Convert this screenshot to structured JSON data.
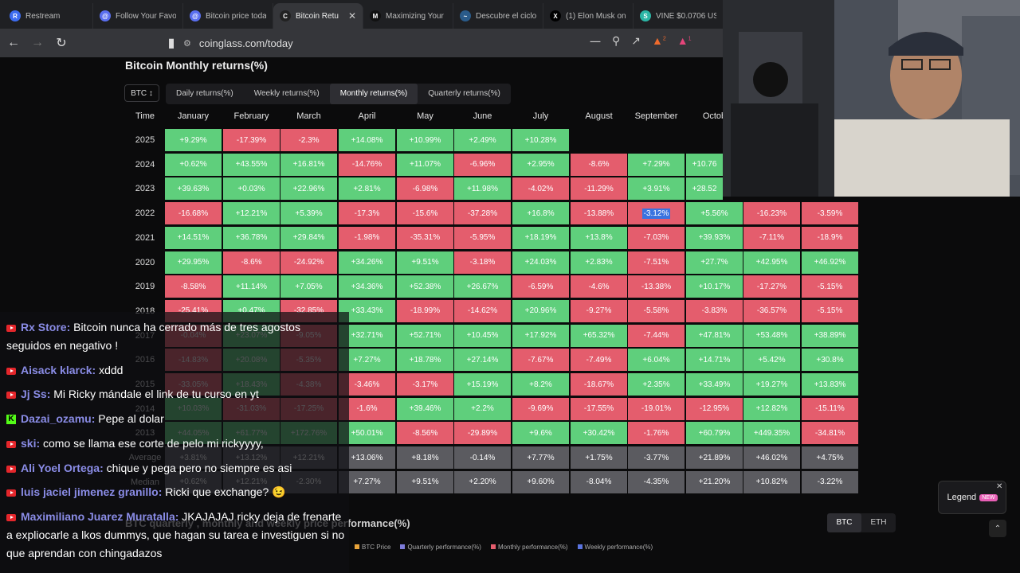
{
  "tabs": [
    {
      "title": "Restream",
      "icon": "restream-icon",
      "color": "#3d6cf0",
      "glyph": "R"
    },
    {
      "title": "Follow Your Favou",
      "icon": "browser-app-icon",
      "color": "#5a6ff0",
      "glyph": "@"
    },
    {
      "title": "Bitcoin price toda",
      "icon": "browser-app-icon",
      "color": "#5a6ff0",
      "glyph": "@"
    },
    {
      "title": "Bitcoin Retu",
      "icon": "coinglass-icon",
      "color": "#222222",
      "glyph": "C",
      "active": true
    },
    {
      "title": "Maximizing Your C",
      "icon": "medium-icon",
      "color": "#111111",
      "glyph": "M"
    },
    {
      "title": "Descubre el ciclo c",
      "icon": "chart-icon",
      "color": "#2a5b8a",
      "glyph": "~"
    },
    {
      "title": "(1) Elon Musk on X",
      "icon": "x-icon",
      "color": "#000000",
      "glyph": "X"
    },
    {
      "title": "VINE $0.0706 USD",
      "icon": "token-icon",
      "color": "#2cb6a6",
      "glyph": "S"
    }
  ],
  "toolbar": {
    "url": "coinglass.com/today",
    "badge_brave": "2",
    "badge_alert": "1"
  },
  "page": {
    "title": "Bitcoin Monthly returns(%)",
    "coin_select": "BTC",
    "period_tabs": [
      "Daily returns(%)",
      "Weekly returns(%)",
      "Monthly returns(%)",
      "Quarterly returns(%)"
    ],
    "active_period": 2,
    "subtitle": "BTC quarterly , monthly and weekly price performance(%)",
    "legend_items": [
      "BTC Price",
      "Quarterly performance(%)",
      "Monthly performance(%)",
      "Weekly performance(%)"
    ],
    "legend_colors": [
      "#e8a43a",
      "#7d7bd9",
      "#e45d6d",
      "#5b74e0"
    ],
    "currency_tabs": [
      "BTC",
      "ETH"
    ],
    "legend_button": "Legend",
    "legend_badge": "NEW"
  },
  "table": {
    "time_header": "Time",
    "months": [
      "January",
      "February",
      "March",
      "April",
      "May",
      "June",
      "July",
      "August",
      "September",
      "Octob"
    ],
    "rows": [
      {
        "year": "2025",
        "values": [
          "+9.29%",
          "-17.39%",
          "-2.3%",
          "+14.08%",
          "+10.99%",
          "+2.49%",
          "+10.28%",
          "",
          "",
          "",
          "",
          ""
        ]
      },
      {
        "year": "2024",
        "values": [
          "+0.62%",
          "+43.55%",
          "+16.81%",
          "-14.76%",
          "+11.07%",
          "-6.96%",
          "+2.95%",
          "-8.6%",
          "+7.29%",
          "+10.76",
          "",
          ""
        ]
      },
      {
        "year": "2023",
        "values": [
          "+39.63%",
          "+0.03%",
          "+22.96%",
          "+2.81%",
          "-6.98%",
          "+11.98%",
          "-4.02%",
          "-11.29%",
          "+3.91%",
          "+28.52",
          "",
          ""
        ]
      },
      {
        "year": "2022",
        "values": [
          "-16.68%",
          "+12.21%",
          "+5.39%",
          "-17.3%",
          "-15.6%",
          "-37.28%",
          "+16.8%",
          "-13.88%",
          "-3.12%",
          "+5.56%",
          "-16.23%",
          "-3.59%"
        ]
      },
      {
        "year": "2021",
        "values": [
          "+14.51%",
          "+36.78%",
          "+29.84%",
          "-1.98%",
          "-35.31%",
          "-5.95%",
          "+18.19%",
          "+13.8%",
          "-7.03%",
          "+39.93%",
          "-7.11%",
          "-18.9%"
        ]
      },
      {
        "year": "2020",
        "values": [
          "+29.95%",
          "-8.6%",
          "-24.92%",
          "+34.26%",
          "+9.51%",
          "-3.18%",
          "+24.03%",
          "+2.83%",
          "-7.51%",
          "+27.7%",
          "+42.95%",
          "+46.92%"
        ]
      },
      {
        "year": "2019",
        "values": [
          "-8.58%",
          "+11.14%",
          "+7.05%",
          "+34.36%",
          "+52.38%",
          "+26.67%",
          "-6.59%",
          "-4.6%",
          "-13.38%",
          "+10.17%",
          "-17.27%",
          "-5.15%"
        ]
      },
      {
        "year": "2018",
        "values": [
          "-25.41%",
          "+0.47%",
          "-32.85%",
          "+33.43%",
          "-18.99%",
          "-14.62%",
          "+20.96%",
          "-9.27%",
          "-5.58%",
          "-3.83%",
          "-36.57%",
          "-5.15%"
        ]
      },
      {
        "year": "2017",
        "values": [
          "-0.04%",
          "+23.07%",
          "-9.05%",
          "+32.71%",
          "+52.71%",
          "+10.45%",
          "+17.92%",
          "+65.32%",
          "-7.44%",
          "+47.81%",
          "+53.48%",
          "+38.89%"
        ]
      },
      {
        "year": "2016",
        "values": [
          "-14.83%",
          "+20.08%",
          "-5.35%",
          "+7.27%",
          "+18.78%",
          "+27.14%",
          "-7.67%",
          "-7.49%",
          "+6.04%",
          "+14.71%",
          "+5.42%",
          "+30.8%"
        ]
      },
      {
        "year": "2015",
        "values": [
          "-33.05%",
          "+18.43%",
          "-4.38%",
          "-3.46%",
          "-3.17%",
          "+15.19%",
          "+8.2%",
          "-18.67%",
          "+2.35%",
          "+33.49%",
          "+19.27%",
          "+13.83%"
        ]
      },
      {
        "year": "2014",
        "values": [
          "+10.03%",
          "-31.03%",
          "-17.25%",
          "-1.6%",
          "+39.46%",
          "+2.2%",
          "-9.69%",
          "-17.55%",
          "-19.01%",
          "-12.95%",
          "+12.82%",
          "-15.11%"
        ]
      },
      {
        "year": "2013",
        "values": [
          "+44.05%",
          "+61.77%",
          "+172.76%",
          "+50.01%",
          "-8.56%",
          "-29.89%",
          "+9.6%",
          "+30.42%",
          "-1.76%",
          "+60.79%",
          "+449.35%",
          "-34.81%"
        ]
      },
      {
        "year": "Average",
        "stat": true,
        "values": [
          "+3.81%",
          "+13.12%",
          "+12.21%",
          "+13.06%",
          "+8.18%",
          "-0.14%",
          "+7.77%",
          "+1.75%",
          "-3.77%",
          "+21.89%",
          "+46.02%",
          "+4.75%"
        ]
      },
      {
        "year": "Median",
        "stat": true,
        "values": [
          "+0.62%",
          "+12.21%",
          "-2.30%",
          "+7.27%",
          "+9.51%",
          "+2.20%",
          "+9.60%",
          "-8.04%",
          "-4.35%",
          "+21.20%",
          "+10.82%",
          "-3.22%"
        ]
      }
    ],
    "highlight": {
      "row": 3,
      "col": 8
    }
  },
  "chat": [
    {
      "platform": "youtube",
      "name": "Rx Store:",
      "text": "Bitcoin nunca ha cerrado más de tres agostos seguidos en negativo !"
    },
    {
      "platform": "youtube",
      "name": "Aisack klarck:",
      "text": "xddd"
    },
    {
      "platform": "youtube",
      "name": "Jj Ss:",
      "text": "Mi Ricky mándale el link de tu curso en yt"
    },
    {
      "platform": "kick",
      "name": "Dazai_ozamu:",
      "text": "Pepe al dolar"
    },
    {
      "platform": "youtube",
      "name": "ski:",
      "text": "como se llama ese corte de pelo mi rickyyyy,"
    },
    {
      "platform": "youtube",
      "name": "Ali Yoel Ortega:",
      "text": "chique y pega pero no siempre es asi"
    },
    {
      "platform": "youtube",
      "name": "luis jaciel jimenez granillo:",
      "text": "Ricki que exchange? 😉"
    },
    {
      "platform": "youtube",
      "name": "Maximiliano Juarez Muratalla:",
      "text": "JKAJAJAJ ricky deja de frenarte a expliocarle a lkos dummys, que hagan su tarea e investiguen si no que aprendan con chingadazos"
    }
  ]
}
